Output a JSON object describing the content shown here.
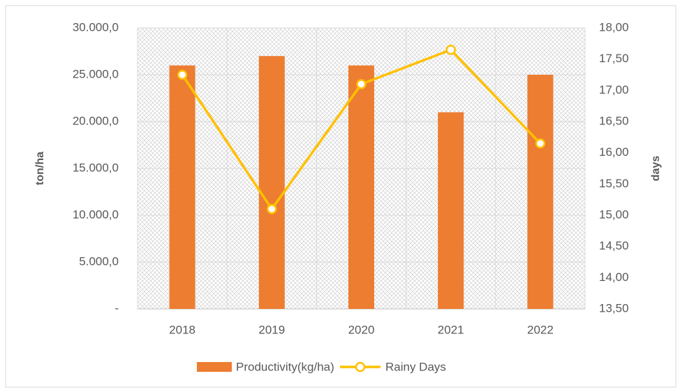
{
  "chart_data": {
    "type": "bar",
    "categories": [
      "2018",
      "2019",
      "2020",
      "2021",
      "2022"
    ],
    "series": [
      {
        "name": "Productivity(kg/ha)",
        "type": "bar",
        "color": "#ed7d31",
        "values": [
          26000,
          27000,
          26000,
          21000,
          25000
        ]
      },
      {
        "name": "Rainy Days",
        "type": "line",
        "color": "#ffc000",
        "axis": "y2",
        "values": [
          17.25,
          15.1,
          17.1,
          17.65,
          16.15
        ]
      }
    ],
    "ylabel": "ton/ha",
    "y2label": "days",
    "ylim": [
      0,
      30000
    ],
    "yticks": [
      {
        "value": 0,
        "label": "-"
      },
      {
        "value": 5000,
        "label": "5.000,0"
      },
      {
        "value": 10000,
        "label": "10.000,0"
      },
      {
        "value": 15000,
        "label": "15.000,0"
      },
      {
        "value": 20000,
        "label": "20.000,0"
      },
      {
        "value": 25000,
        "label": "25.000,0"
      },
      {
        "value": 30000,
        "label": "30.000,0"
      }
    ],
    "y2lim": [
      13.5,
      18
    ],
    "y2ticks": [
      {
        "value": 13.5,
        "label": "13,50"
      },
      {
        "value": 14,
        "label": "14,00"
      },
      {
        "value": 14.5,
        "label": "14,50"
      },
      {
        "value": 15,
        "label": "15,00"
      },
      {
        "value": 15.5,
        "label": "15,50"
      },
      {
        "value": 16,
        "label": "16,00"
      },
      {
        "value": 16.5,
        "label": "16,50"
      },
      {
        "value": 17,
        "label": "17,00"
      },
      {
        "value": 17.5,
        "label": "17,50"
      },
      {
        "value": 18,
        "label": "18,00"
      }
    ],
    "grid": true,
    "legend": "bottom"
  }
}
